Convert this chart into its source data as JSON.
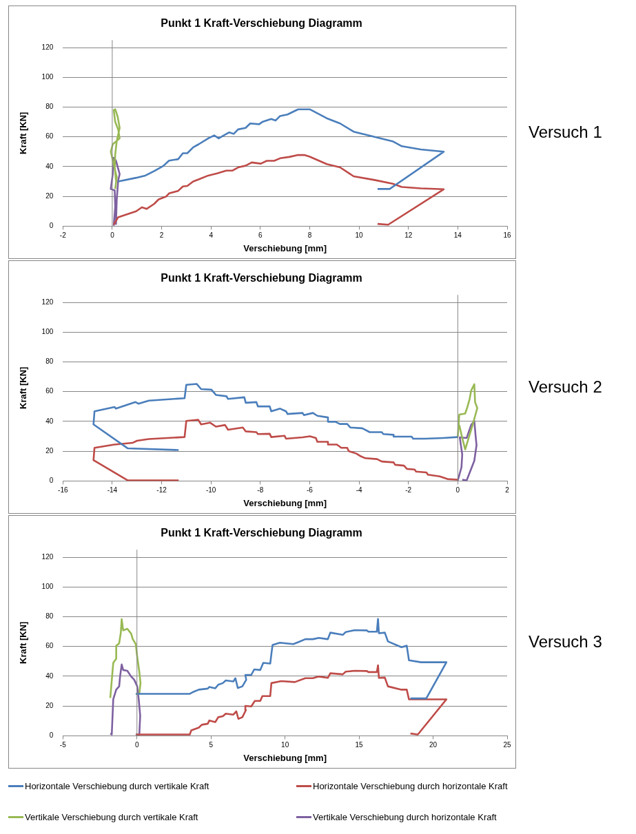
{
  "chart_data": [
    {
      "type": "line",
      "title": "Punkt 1 Kraft-Verschiebung Diagramm",
      "xlabel": "Verschiebung [mm]",
      "ylabel": "Kraft [KN]",
      "annotations": [
        "Versuch 1"
      ],
      "xlim": [
        -2,
        16
      ],
      "xticks": [
        -2,
        0,
        2,
        4,
        6,
        8,
        10,
        12,
        14,
        16
      ],
      "ylim": [
        0,
        125
      ],
      "yticks": [
        0,
        20,
        40,
        60,
        80,
        100,
        120
      ],
      "grid": "y",
      "ref_lines": [
        {
          "axis": "x",
          "value": 0,
          "color": "#868686"
        }
      ],
      "series": [
        {
          "color": "#4a7ebb",
          "x": [
            0.24,
            0.97,
            1.34,
            1.7,
            2.07,
            2.3,
            2.67,
            2.86,
            3.04,
            3.28,
            3.5,
            3.89,
            4.13,
            4.31,
            4.74,
            4.92,
            5.1,
            5.4,
            5.59,
            5.95,
            6.08,
            6.44,
            6.62,
            6.8,
            7.1,
            7.53,
            8.0,
            8.69,
            9.23,
            9.78,
            10.63,
            11.36,
            11.73,
            12.5,
            13.43,
            11.24,
            10.75
          ],
          "values": [
            30,
            32.5,
            34,
            37,
            40.5,
            44,
            45,
            49,
            49,
            53,
            55,
            59,
            61,
            59,
            63,
            62,
            65,
            66,
            69,
            68.5,
            70,
            72,
            71,
            74,
            75,
            78.5,
            78.5,
            72.5,
            69,
            63.5,
            60,
            57,
            53.7,
            51.5,
            50,
            25,
            25
          ]
        },
        {
          "color": "#be4b48",
          "x": [
            0.06,
            0.24,
            0.55,
            0.97,
            1.2,
            1.39,
            1.7,
            1.88,
            2.19,
            2.3,
            2.67,
            2.86,
            3.04,
            3.28,
            3.5,
            3.89,
            4.25,
            4.62,
            4.86,
            5.1,
            5.4,
            5.65,
            6.02,
            6.26,
            6.56,
            6.8,
            7.17,
            7.53,
            7.78,
            8.0,
            8.69,
            9.23,
            9.78,
            10.63,
            11.36,
            11.73,
            12.5,
            13.43,
            11.18,
            10.75
          ],
          "values": [
            1,
            6,
            7.7,
            10,
            12.7,
            11.6,
            15,
            18,
            20,
            22,
            23.7,
            26.7,
            27,
            30,
            31.4,
            34,
            35.5,
            37.3,
            37.3,
            39.5,
            40.6,
            42.8,
            42,
            43.9,
            43.9,
            45.6,
            46.5,
            47.8,
            47.8,
            46.7,
            41.7,
            39.5,
            33.5,
            31,
            28.5,
            26.3,
            25.4,
            24.8,
            1,
            1.5
          ]
        },
        {
          "color": "#98b954",
          "x": [
            0.12,
            0.18,
            -0.06,
            0.02,
            0.3,
            0.24,
            0.12,
            0.06,
            0.12,
            0.22,
            0.3,
            0.18,
            0.12,
            0.1,
            0.15
          ],
          "values": [
            25,
            33,
            50,
            55,
            59,
            65,
            70,
            78,
            78.5,
            73.5,
            66,
            57,
            48,
            39.5,
            30.7
          ]
        },
        {
          "color": "#7d60a0",
          "x": [
            0.06,
            0.12,
            0.1,
            -0.06,
            0.02,
            0.06,
            0.15,
            0.3,
            0.24,
            0.18,
            0.15
          ],
          "values": [
            0.4,
            13,
            24,
            25,
            35,
            46,
            44,
            35,
            30.7,
            17.5,
            1
          ]
        }
      ]
    },
    {
      "type": "line",
      "title": "Punkt 1 Kraft-Verschiebung Diagramm",
      "xlabel": "Verschiebung [mm]",
      "ylabel": "Kraft [KN]",
      "annotations": [
        "Versuch 2"
      ],
      "xlim": [
        -16,
        2
      ],
      "xticks": [
        -16,
        -14,
        -12,
        -10,
        -8,
        -6,
        -4,
        -2,
        0,
        2
      ],
      "ylim": [
        0,
        125
      ],
      "yticks": [
        0,
        20,
        40,
        60,
        80,
        100,
        120
      ],
      "grid": "y",
      "ref_lines": [
        {
          "axis": "x",
          "value": 0,
          "color": "#868686"
        }
      ],
      "series": [
        {
          "color": "#4a7ebb",
          "x": [
            -11.31,
            -13.37,
            -14.76,
            -14.72,
            -13.91,
            -13.85,
            -13.06,
            -12.94,
            -12.52,
            -11.07,
            -11.0,
            -10.58,
            -10.4,
            -9.98,
            -9.8,
            -9.37,
            -9.31,
            -8.65,
            -8.59,
            -8.16,
            -8.1,
            -7.62,
            -7.56,
            -7.2,
            -6.96,
            -6.9,
            -6.29,
            -6.23,
            -5.87,
            -5.69,
            -5.26,
            -5.26,
            -4.96,
            -4.78,
            -4.48,
            -4.35,
            -3.87,
            -3.57,
            -3.08,
            -3.02,
            -2.6,
            -2.6,
            -1.87,
            -1.81,
            -1.33,
            -0.6,
            0
          ],
          "values": [
            20.8,
            21.9,
            38,
            46.8,
            49.7,
            48.6,
            53,
            51.9,
            54,
            55.6,
            64.6,
            65.2,
            61.7,
            61.3,
            57.8,
            56.9,
            55.1,
            56.2,
            52.5,
            53,
            50.1,
            50.1,
            46.8,
            48.6,
            46.8,
            45,
            45.7,
            44.2,
            45.7,
            43.8,
            42.7,
            39.8,
            39.8,
            38.3,
            38.3,
            35.9,
            35.4,
            32.8,
            32.8,
            31.5,
            31,
            29.8,
            29.8,
            28.4,
            28.4,
            28.9,
            29.5
          ]
        },
        {
          "color": "#be4b48",
          "x": [
            -11.31,
            -13.37,
            -14.76,
            -14.72,
            -13.91,
            -13.18,
            -13.0,
            -12.52,
            -11.07,
            -11.0,
            -10.52,
            -10.4,
            -10.04,
            -9.8,
            -9.43,
            -9.31,
            -8.71,
            -8.59,
            -8.16,
            -8.1,
            -7.62,
            -7.56,
            -7.02,
            -6.96,
            -6.29,
            -5.99,
            -5.75,
            -5.69,
            -5.26,
            -5.26,
            -4.9,
            -4.72,
            -4.48,
            -4.42,
            -4.11,
            -3.93,
            -3.75,
            -3.27,
            -3.08,
            -2.6,
            -2.54,
            -2.18,
            -2.06,
            -1.75,
            -1.69,
            -1.27,
            -1.21,
            -0.73,
            -0.42,
            0
          ],
          "values": [
            0.4,
            0.4,
            14,
            22.3,
            24.5,
            25.6,
            27,
            28.2,
            29.5,
            40.3,
            41.1,
            38,
            39.2,
            36.5,
            37.6,
            34.4,
            35.9,
            33.3,
            32.8,
            31.5,
            31.7,
            29.5,
            30.4,
            28.4,
            29.3,
            30,
            28.9,
            26.3,
            26.3,
            24.5,
            24.5,
            22.3,
            22.3,
            20.1,
            18.4,
            16.6,
            15.3,
            14.7,
            13.1,
            12.5,
            10.9,
            10.3,
            8.1,
            7.7,
            6.3,
            5.7,
            4.2,
            3.1,
            1.3,
            0.9
          ]
        },
        {
          "color": "#98b954",
          "x": [
            0,
            0.06,
            0.3,
            0.39,
            0.48,
            0.54,
            0.67,
            0.7,
            0.79,
            0.6,
            0.3,
            0.18,
            0.06
          ],
          "values": [
            29.5,
            44.6,
            45.3,
            49.7,
            55.1,
            60.6,
            65,
            53,
            49,
            37.6,
            21.2,
            28.9,
            37.6
          ]
        },
        {
          "color": "#7d60a0",
          "x": [
            0,
            0.15,
            0.18,
            0.08,
            0.36,
            0.54,
            0.67,
            0.73,
            0.76,
            0.67,
            0.36,
            0.18
          ],
          "values": [
            0.4,
            9.2,
            17.9,
            29.3,
            28.9,
            37.6,
            40.3,
            28.9,
            24.1,
            13.6,
            0.4,
            0.9
          ]
        }
      ]
    },
    {
      "type": "line",
      "title": "Punkt 1 Kraft-Verschiebung Diagramm",
      "xlabel": "Verschiebung [mm]",
      "ylabel": "Kraft [KN]",
      "annotations": [
        "Versuch 3"
      ],
      "xlim": [
        -5,
        25
      ],
      "xticks": [
        -5,
        0,
        5,
        10,
        15,
        20,
        25
      ],
      "ylim": [
        0,
        125
      ],
      "yticks": [
        0,
        20,
        40,
        60,
        80,
        100,
        120
      ],
      "grid": "y",
      "legend": "bottom",
      "ref_lines": [
        {
          "axis": "x",
          "value": 0,
          "color": "#868686"
        }
      ],
      "series": [
        {
          "name": "Horizontale Verschiebung durch vertikale Kraft",
          "color": "#4a7ebb",
          "x": [
            -0.08,
            3.57,
            3.77,
            4.18,
            4.78,
            4.89,
            5.29,
            5.49,
            5.8,
            6.0,
            6.51,
            6.65,
            6.81,
            7.12,
            7.38,
            7.32,
            7.72,
            7.92,
            8.33,
            8.53,
            9.0,
            9.08,
            9.16,
            9.65,
            10.56,
            10.97,
            11.37,
            11.88,
            12.28,
            12.89,
            13.06,
            13.9,
            14.1,
            14.72,
            15.53,
            15.63,
            16.2,
            16.28,
            16.34,
            16.74,
            16.95,
            17.86,
            18.22,
            18.37,
            19.18,
            20.9,
            19.54,
            18.47
          ],
          "values": [
            28.2,
            28.2,
            29.3,
            31,
            31.7,
            32.8,
            31.9,
            34.3,
            35.4,
            37.2,
            36.5,
            38.7,
            32.1,
            33.2,
            37.6,
            40.9,
            40.9,
            44.6,
            44.2,
            49,
            48.5,
            55.1,
            61,
            62.5,
            61.6,
            63.2,
            64.9,
            64.9,
            65.8,
            64.9,
            69.3,
            67.8,
            69.7,
            71,
            70.8,
            69.9,
            69.9,
            78.5,
            68.9,
            69.3,
            63.4,
            59.5,
            60.5,
            50.7,
            49.4,
            49.4,
            25.1,
            25.1
          ]
        },
        {
          "name": "Horizontale Verschiebung durch horizontale Kraft",
          "color": "#be4b48",
          "x": [
            -0.08,
            3.57,
            3.67,
            4.18,
            4.38,
            4.78,
            4.89,
            5.29,
            5.49,
            5.8,
            6.0,
            6.51,
            6.71,
            6.85,
            7.12,
            7.36,
            7.32,
            7.72,
            7.96,
            8.33,
            8.47,
            9.0,
            9.08,
            9.75,
            10.66,
            11.37,
            11.88,
            12.28,
            12.89,
            13.06,
            13.9,
            14.1,
            14.72,
            15.53,
            15.63,
            16.2,
            16.28,
            16.34,
            16.74,
            16.95,
            17.86,
            18.22,
            18.37,
            20.9,
            18.97,
            18.47
          ],
          "values": [
            0.9,
            0.9,
            3.7,
            5.5,
            7.4,
            8.1,
            10.3,
            9.2,
            12.5,
            13.1,
            14.9,
            14.2,
            16.4,
            11.4,
            12.5,
            17.3,
            20.1,
            19.7,
            23.4,
            23.4,
            26.7,
            26.7,
            35.4,
            36.7,
            36.1,
            38.7,
            38.7,
            39.8,
            38.9,
            42,
            41.3,
            43.1,
            43.7,
            43.5,
            42.8,
            42.8,
            47.4,
            38.9,
            39.1,
            33.2,
            31,
            31,
            24.5,
            24.5,
            0.9,
            1.5
          ]
        },
        {
          "name": "Vertikale Verschiebung durch vertikale Kraft",
          "color": "#98b954",
          "x": [
            -1.8,
            -1.6,
            -1.4,
            -1.4,
            -1.2,
            -1.09,
            -1.03,
            -0.93,
            -0.65,
            -0.39,
            -0.28,
            -0.08,
            0.02,
            0.16,
            0.24,
            0.16,
            -0.08
          ],
          "values": [
            25.4,
            49,
            51.8,
            60.5,
            62.1,
            69.3,
            78.3,
            70.8,
            71.9,
            68.6,
            64.9,
            61.6,
            52.9,
            43.1,
            35.4,
            28.2,
            28.2
          ]
        },
        {
          "name": "Vertikale Verschiebung durch horizontale Kraft",
          "color": "#7d60a0",
          "x": [
            -1.8,
            -1.7,
            -1.6,
            -1.4,
            -1.2,
            -1.14,
            -1.03,
            -0.93,
            -0.65,
            -0.39,
            -0.18,
            0.02,
            0.12,
            0.22,
            0.16,
            -0.08
          ],
          "values": [
            1.5,
            0.9,
            24.5,
            31,
            33.2,
            39.8,
            47.9,
            44.2,
            43.7,
            39.8,
            37.6,
            33.2,
            24.5,
            13.6,
            0.9,
            0.9
          ]
        }
      ]
    }
  ]
}
